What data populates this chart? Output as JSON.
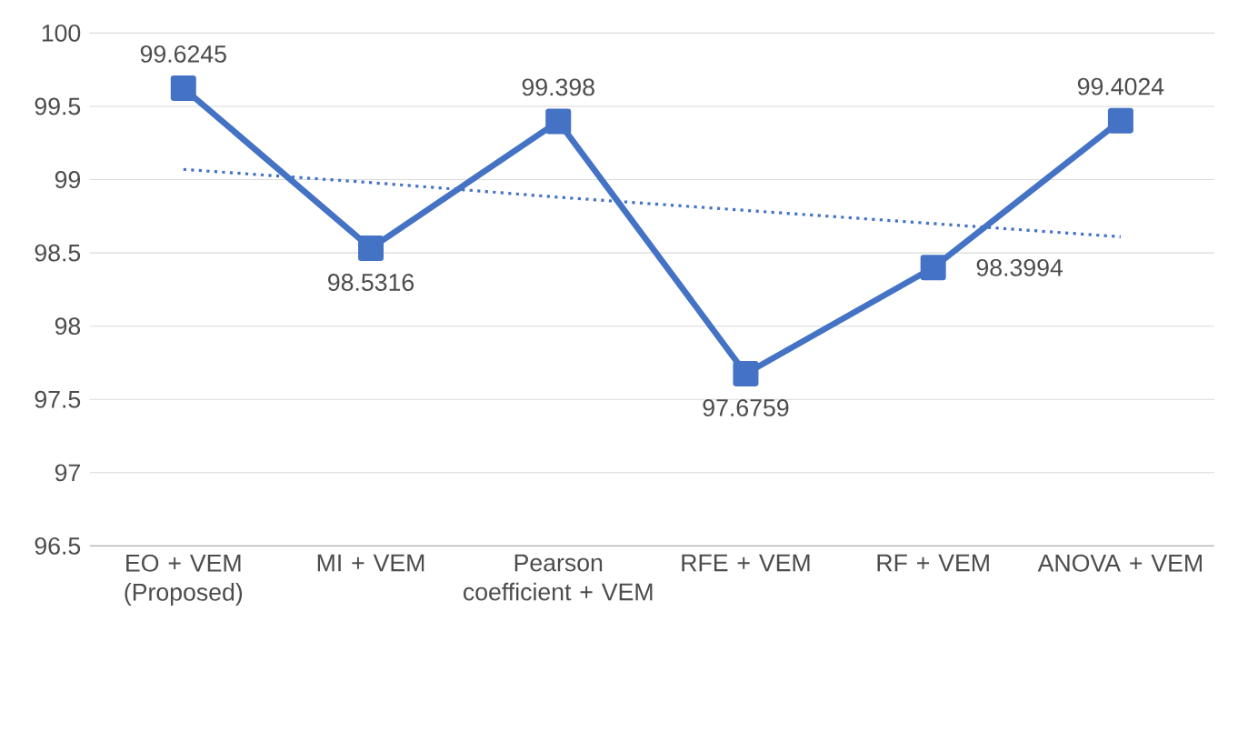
{
  "chart_data": {
    "type": "line",
    "categories": [
      "EO + VEM (Proposed)",
      "MI + VEM",
      "Pearson coefficient + VEM",
      "RFE + VEM",
      "RF + VEM",
      "ANOVA + VEM"
    ],
    "series": [
      {
        "color": "#4472c4",
        "values": [
          99.6245,
          98.5316,
          99.398,
          97.6759,
          98.3994,
          99.4024
        ],
        "marker": "square",
        "line_style": "solid",
        "data_labels": true
      },
      {
        "color": "#4472c4",
        "values": [
          99.07,
          98.98,
          98.88,
          98.79,
          98.7,
          98.61
        ],
        "marker": "none",
        "line_style": "dotted"
      }
    ],
    "ylim": [
      96.5,
      100
    ],
    "yticks": [
      96.5,
      97,
      97.5,
      98,
      98.5,
      99,
      99.5,
      100
    ],
    "grid": "y"
  }
}
